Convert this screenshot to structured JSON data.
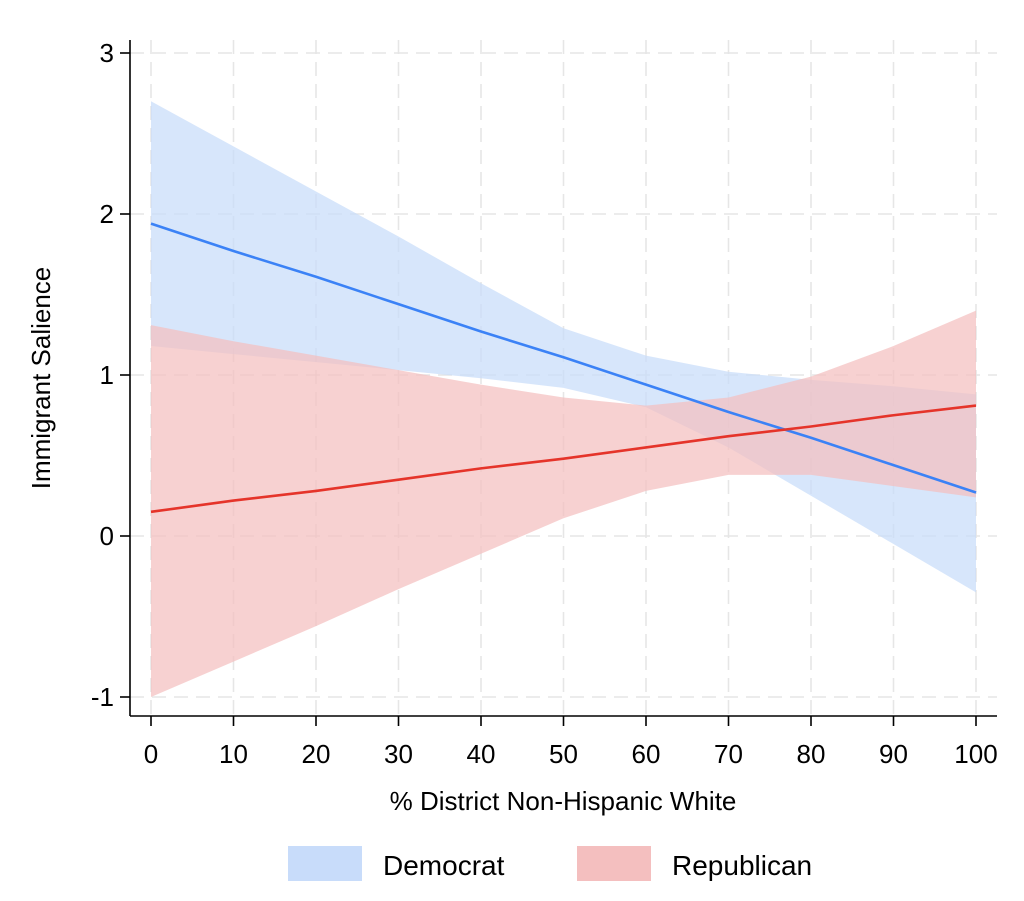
{
  "chart_data": {
    "type": "line",
    "title": "",
    "xlabel": "% District Non-Hispanic White",
    "ylabel": "Immigrant Salience",
    "xlim": [
      0,
      100
    ],
    "ylim": [
      -1,
      3
    ],
    "xticks": [
      0,
      10,
      20,
      30,
      40,
      50,
      60,
      70,
      80,
      90,
      100
    ],
    "yticks": [
      -1,
      0,
      1,
      2,
      3
    ],
    "grid": true,
    "legend_position": "bottom",
    "series": [
      {
        "name": "Democrat",
        "color": "#3b82f6",
        "band_color": "#c8dcfa",
        "x": [
          0,
          10,
          20,
          30,
          40,
          50,
          60,
          70,
          80,
          90,
          100
        ],
        "y": [
          1.94,
          1.77,
          1.61,
          1.44,
          1.27,
          1.11,
          0.94,
          0.77,
          0.61,
          0.44,
          0.27
        ],
        "ci_lower": [
          1.18,
          1.13,
          1.08,
          1.03,
          0.98,
          0.92,
          0.8,
          0.55,
          0.25,
          -0.05,
          -0.35
        ],
        "ci_upper": [
          2.7,
          2.42,
          2.14,
          1.86,
          1.57,
          1.29,
          1.12,
          1.02,
          0.97,
          0.93,
          0.88
        ]
      },
      {
        "name": "Republican",
        "color": "#e5342a",
        "band_color": "#f4bfbf",
        "x": [
          0,
          10,
          20,
          30,
          40,
          50,
          60,
          70,
          80,
          90,
          100
        ],
        "y": [
          0.15,
          0.22,
          0.28,
          0.35,
          0.42,
          0.48,
          0.55,
          0.62,
          0.68,
          0.75,
          0.81
        ],
        "ci_lower": [
          -1.0,
          -0.78,
          -0.56,
          -0.33,
          -0.11,
          0.11,
          0.28,
          0.38,
          0.38,
          0.31,
          0.24
        ],
        "ci_upper": [
          1.31,
          1.21,
          1.12,
          1.03,
          0.94,
          0.86,
          0.81,
          0.86,
          0.99,
          1.18,
          1.4
        ]
      }
    ]
  }
}
